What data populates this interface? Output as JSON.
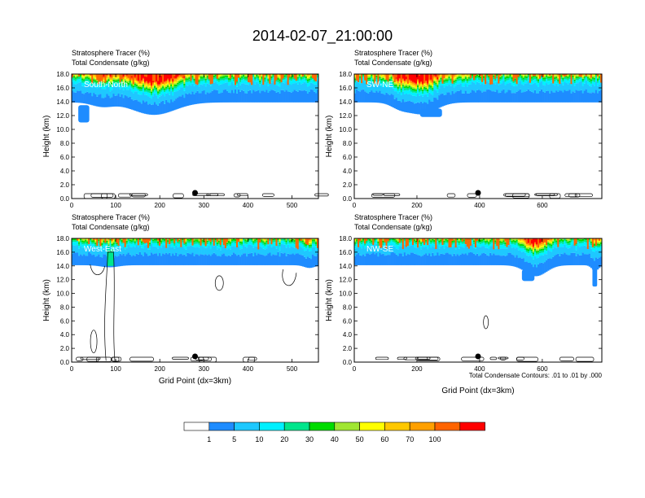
{
  "title": "2014-02-07_21:00:00",
  "tracer_label": "Stratosphere Tracer   (%)",
  "condensate_label": "Total Condensate   (g/kg)",
  "contour_note": "Total Condensate Contours: .01 to .01 by .000",
  "colors": [
    "#ffffff",
    "#1e8cff",
    "#1ec8ff",
    "#00f0ff",
    "#00e68c",
    "#00dc00",
    "#a0e632",
    "#ffff00",
    "#ffc800",
    "#ffa000",
    "#ff6400",
    "#ff0000"
  ],
  "chart_data": [
    {
      "type": "heatmap",
      "panel_label": "South-North",
      "ylabel": "Height (km)",
      "xlabel": "",
      "xlim": [
        0,
        560
      ],
      "ylim": [
        0,
        18
      ],
      "xticks": [
        0,
        100,
        200,
        300,
        400,
        500
      ],
      "yticks": [
        "0.0",
        "2.0",
        "4.0",
        "6.0",
        "8.0",
        "10.0",
        "12.0",
        "14.0",
        "16.0",
        "18.0"
      ],
      "marker_x": 280
    },
    {
      "type": "heatmap",
      "panel_label": "SW-NE",
      "ylabel": "Height (km)",
      "xlabel": "",
      "xlim": [
        0,
        790
      ],
      "ylim": [
        0,
        18
      ],
      "xticks": [
        0,
        200,
        400,
        600
      ],
      "yticks": [
        "0.0",
        "2.0",
        "4.0",
        "6.0",
        "8.0",
        "10.0",
        "12.0",
        "14.0",
        "16.0",
        "18.0"
      ],
      "marker_x": 395
    },
    {
      "type": "heatmap",
      "panel_label": "West-East",
      "ylabel": "Height (km)",
      "xlabel": "Grid Point (dx=3km)",
      "xlim": [
        0,
        560
      ],
      "ylim": [
        0,
        18
      ],
      "xticks": [
        0,
        100,
        200,
        300,
        400,
        500
      ],
      "yticks": [
        "0.0",
        "2.0",
        "4.0",
        "6.0",
        "8.0",
        "10.0",
        "12.0",
        "14.0",
        "16.0",
        "18.0"
      ],
      "marker_x": 280
    },
    {
      "type": "heatmap",
      "panel_label": "NW-SE",
      "ylabel": "Height (km)",
      "xlabel": "Grid Point (dx=3km)",
      "xlim": [
        0,
        790
      ],
      "ylim": [
        0,
        18
      ],
      "xticks": [
        0,
        200,
        400,
        600
      ],
      "yticks": [
        "0.0",
        "2.0",
        "4.0",
        "6.0",
        "8.0",
        "10.0",
        "12.0",
        "14.0",
        "16.0",
        "18.0"
      ],
      "marker_x": 395
    }
  ],
  "colorbar": {
    "labels": [
      "1",
      "5",
      "10",
      "20",
      "30",
      "40",
      "50",
      "60",
      "70",
      "100"
    ]
  }
}
